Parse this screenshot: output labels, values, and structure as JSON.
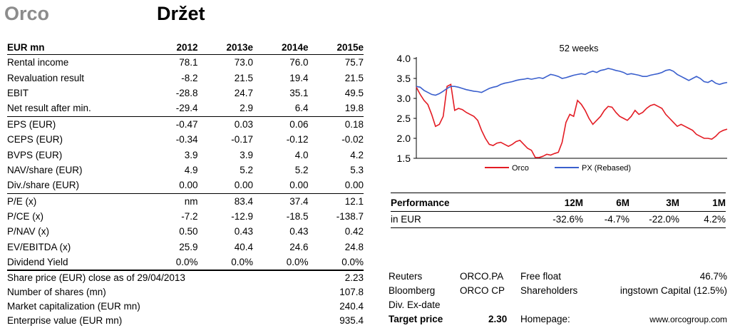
{
  "header": {
    "company": "Orco",
    "rating": "Držet"
  },
  "table": {
    "columns": [
      "EUR mn",
      "2012",
      "2013e",
      "2014e",
      "2015e"
    ],
    "rows": [
      {
        "label": "Rental income",
        "values": [
          "78.1",
          "73.0",
          "76.0",
          "75.7"
        ],
        "sep": false
      },
      {
        "label": "Revaluation result",
        "values": [
          "-8.2",
          "21.5",
          "19.4",
          "21.5"
        ],
        "sep": false
      },
      {
        "label": "EBIT",
        "values": [
          "-28.8",
          "24.7",
          "35.1",
          "49.5"
        ],
        "sep": false
      },
      {
        "label": "Net result after min.",
        "values": [
          "-29.4",
          "2.9",
          "6.4",
          "19.8"
        ],
        "sep": true
      },
      {
        "label": "EPS (EUR)",
        "values": [
          "-0.47",
          "0.03",
          "0.06",
          "0.18"
        ],
        "sep": false
      },
      {
        "label": "CEPS (EUR)",
        "values": [
          "-0.34",
          "-0.17",
          "-0.12",
          "-0.02"
        ],
        "sep": false
      },
      {
        "label": "BVPS (EUR)",
        "values": [
          "3.9",
          "3.9",
          "4.0",
          "4.2"
        ],
        "sep": false
      },
      {
        "label": "NAV/share (EUR)",
        "values": [
          "4.9",
          "5.2",
          "5.2",
          "5.3"
        ],
        "sep": false
      },
      {
        "label": "Div./share (EUR)",
        "values": [
          "0.00",
          "0.00",
          "0.00",
          "0.00"
        ],
        "sep": true
      },
      {
        "label": "P/E (x)",
        "values": [
          "nm",
          "83.4",
          "37.4",
          "12.1"
        ],
        "sep": false
      },
      {
        "label": "P/CE (x)",
        "values": [
          "-7.2",
          "-12.9",
          "-18.5",
          "-138.7"
        ],
        "sep": false
      },
      {
        "label": "P/NAV (x)",
        "values": [
          "0.50",
          "0.43",
          "0.43",
          "0.42"
        ],
        "sep": false
      },
      {
        "label": "EV/EBITDA (x)",
        "values": [
          "25.9",
          "40.4",
          "24.6",
          "24.8"
        ],
        "sep": false
      },
      {
        "label": "Dividend Yield",
        "values": [
          "0.0%",
          "0.0%",
          "0.0%",
          "0.0%"
        ],
        "sep": false
      }
    ]
  },
  "info_left": [
    {
      "label": "Share price (EUR) close as of 29/04/2013",
      "value": "2.23"
    },
    {
      "label": "Number of shares (mn)",
      "value": "107.8"
    },
    {
      "label": "Market capitalization (EUR mn)",
      "value": "240.4"
    },
    {
      "label": "Enterprise value (EUR mn)",
      "value": "935.4"
    }
  ],
  "info_right": {
    "reuters_label": "Reuters",
    "reuters_value": "ORCO.PA",
    "freefloat_label": "Free float",
    "freefloat_value": "46.7%",
    "bloomberg_label": "Bloomberg",
    "bloomberg_value": "ORCO CP",
    "shareholders_label": "Shareholders",
    "shareholders_value": "ingstown Capital  (12.5%)",
    "divexdate_label": "Div. Ex-date",
    "target_label": "Target price",
    "target_value": "2.30",
    "homepage_label": "Homepage:",
    "homepage_value": "www.orcogroup.com"
  },
  "performance": {
    "title": "Performance",
    "periods": [
      "12M",
      "6M",
      "3M",
      "1M"
    ],
    "row_label": "in EUR",
    "values": [
      "-32.6%",
      "-4.7%",
      "-22.0%",
      "4.2%"
    ]
  },
  "chart_data": {
    "type": "line",
    "title": "52 weeks",
    "ylim": [
      1.5,
      4.0
    ],
    "yticks": [
      "4.0",
      "3.5",
      "3.0",
      "2.5",
      "2.0",
      "1.5"
    ],
    "colors": {
      "Orco": "#e31b23",
      "PX (Rebased)": "#3a5fcd"
    },
    "series": [
      {
        "name": "Orco",
        "values": [
          3.28,
          3.1,
          2.95,
          2.85,
          2.6,
          2.3,
          2.35,
          2.55,
          3.3,
          3.35,
          2.7,
          2.75,
          2.72,
          2.65,
          2.6,
          2.55,
          2.45,
          2.2,
          2.0,
          1.85,
          1.82,
          1.88,
          1.9,
          1.85,
          1.8,
          1.85,
          1.92,
          1.95,
          1.85,
          1.75,
          1.7,
          1.52,
          1.52,
          1.55,
          1.6,
          1.58,
          1.62,
          1.65,
          1.9,
          2.4,
          2.6,
          2.55,
          2.95,
          2.85,
          2.7,
          2.5,
          2.35,
          2.45,
          2.55,
          2.7,
          2.8,
          2.78,
          2.65,
          2.55,
          2.5,
          2.45,
          2.55,
          2.7,
          2.6,
          2.65,
          2.75,
          2.82,
          2.85,
          2.8,
          2.75,
          2.6,
          2.5,
          2.4,
          2.3,
          2.35,
          2.3,
          2.25,
          2.2,
          2.1,
          2.05,
          2.0,
          2.0,
          1.98,
          2.05,
          2.15,
          2.2,
          2.23
        ]
      },
      {
        "name": "PX (Rebased)",
        "values": [
          3.3,
          3.28,
          3.2,
          3.15,
          3.1,
          3.08,
          3.12,
          3.18,
          3.25,
          3.3,
          3.3,
          3.28,
          3.25,
          3.22,
          3.2,
          3.18,
          3.17,
          3.15,
          3.2,
          3.25,
          3.28,
          3.3,
          3.35,
          3.38,
          3.4,
          3.42,
          3.45,
          3.47,
          3.48,
          3.5,
          3.48,
          3.5,
          3.52,
          3.5,
          3.55,
          3.6,
          3.58,
          3.55,
          3.5,
          3.52,
          3.55,
          3.58,
          3.6,
          3.62,
          3.6,
          3.65,
          3.68,
          3.65,
          3.7,
          3.72,
          3.75,
          3.73,
          3.7,
          3.68,
          3.65,
          3.6,
          3.62,
          3.6,
          3.58,
          3.55,
          3.55,
          3.58,
          3.6,
          3.62,
          3.65,
          3.7,
          3.72,
          3.68,
          3.6,
          3.55,
          3.5,
          3.45,
          3.5,
          3.55,
          3.5,
          3.42,
          3.4,
          3.45,
          3.38,
          3.35,
          3.38,
          3.4
        ]
      }
    ]
  }
}
